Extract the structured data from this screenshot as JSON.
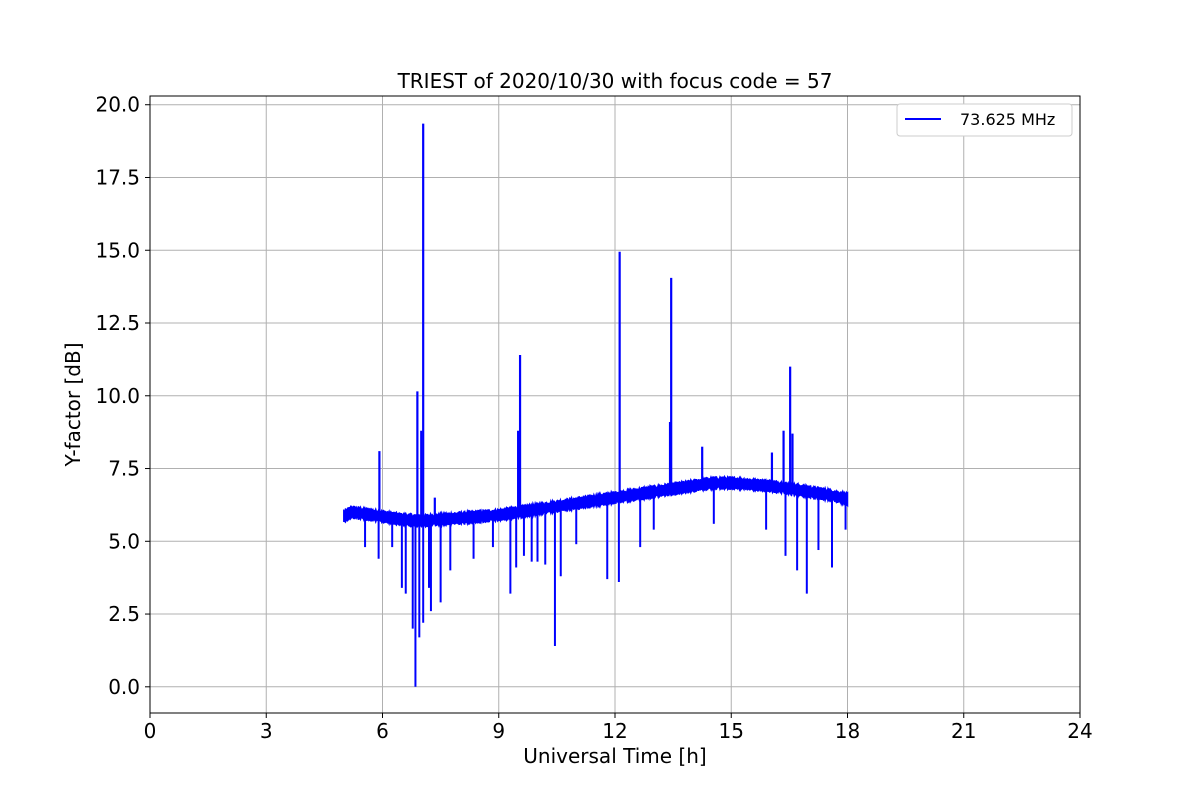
{
  "chart_data": {
    "type": "line",
    "title": "TRIEST of 2020/10/30 with focus code = 57",
    "xlabel": "Universal Time [h]",
    "ylabel": "Y-factor [dB]",
    "xlim": [
      0,
      24
    ],
    "ylim": [
      -0.9,
      20.3
    ],
    "xticks": [
      0,
      3,
      6,
      9,
      12,
      15,
      18,
      21,
      24
    ],
    "yticks": [
      0.0,
      2.5,
      5.0,
      7.5,
      10.0,
      12.5,
      15.0,
      17.5,
      20.0
    ],
    "xtick_labels": [
      "0",
      "3",
      "6",
      "9",
      "12",
      "15",
      "18",
      "21",
      "24"
    ],
    "ytick_labels": [
      "0.0",
      "2.5",
      "5.0",
      "7.5",
      "10.0",
      "12.5",
      "15.0",
      "17.5",
      "20.0"
    ],
    "grid": true,
    "legend_position": "top-right",
    "series": [
      {
        "name": "73.625 MHz",
        "color": "#0000ff",
        "baseline": {
          "x": [
            5.0,
            5.2,
            5.5,
            6.0,
            6.5,
            7.0,
            7.5,
            8.0,
            8.5,
            9.0,
            9.5,
            10.0,
            10.5,
            11.0,
            11.5,
            12.0,
            12.5,
            13.0,
            13.5,
            14.0,
            14.5,
            15.0,
            15.5,
            16.0,
            16.5,
            17.0,
            17.5,
            18.0
          ],
          "y": [
            5.85,
            6.0,
            5.95,
            5.85,
            5.75,
            5.7,
            5.75,
            5.8,
            5.85,
            5.9,
            6.0,
            6.1,
            6.2,
            6.3,
            6.4,
            6.5,
            6.6,
            6.7,
            6.8,
            6.9,
            7.0,
            7.0,
            6.95,
            6.9,
            6.8,
            6.7,
            6.6,
            6.45
          ]
        },
        "spikes_up": [
          {
            "x": 5.92,
            "y": 8.1
          },
          {
            "x": 6.9,
            "y": 10.15
          },
          {
            "x": 7.0,
            "y": 8.8
          },
          {
            "x": 7.05,
            "y": 19.35
          },
          {
            "x": 7.35,
            "y": 6.5
          },
          {
            "x": 9.5,
            "y": 8.8
          },
          {
            "x": 9.55,
            "y": 11.4
          },
          {
            "x": 12.12,
            "y": 14.95
          },
          {
            "x": 13.42,
            "y": 9.1
          },
          {
            "x": 13.45,
            "y": 14.05
          },
          {
            "x": 14.25,
            "y": 8.25
          },
          {
            "x": 16.05,
            "y": 8.05
          },
          {
            "x": 16.35,
            "y": 8.8
          },
          {
            "x": 16.52,
            "y": 11.0
          },
          {
            "x": 16.58,
            "y": 8.7
          }
        ],
        "spikes_down": [
          {
            "x": 5.55,
            "y": 4.8
          },
          {
            "x": 5.9,
            "y": 4.4
          },
          {
            "x": 6.25,
            "y": 4.8
          },
          {
            "x": 6.5,
            "y": 3.4
          },
          {
            "x": 6.6,
            "y": 3.2
          },
          {
            "x": 6.78,
            "y": 2.0
          },
          {
            "x": 6.85,
            "y": 0.0
          },
          {
            "x": 6.95,
            "y": 1.7
          },
          {
            "x": 7.05,
            "y": 2.2
          },
          {
            "x": 7.2,
            "y": 3.4
          },
          {
            "x": 7.25,
            "y": 2.6
          },
          {
            "x": 7.5,
            "y": 2.9
          },
          {
            "x": 7.75,
            "y": 4.0
          },
          {
            "x": 8.35,
            "y": 4.4
          },
          {
            "x": 8.85,
            "y": 4.8
          },
          {
            "x": 9.3,
            "y": 3.2
          },
          {
            "x": 9.45,
            "y": 4.1
          },
          {
            "x": 9.65,
            "y": 4.5
          },
          {
            "x": 9.85,
            "y": 4.3
          },
          {
            "x": 10.0,
            "y": 4.3
          },
          {
            "x": 10.2,
            "y": 4.2
          },
          {
            "x": 10.45,
            "y": 1.4
          },
          {
            "x": 10.6,
            "y": 3.8
          },
          {
            "x": 11.0,
            "y": 4.9
          },
          {
            "x": 11.8,
            "y": 3.7
          },
          {
            "x": 12.1,
            "y": 3.6
          },
          {
            "x": 12.65,
            "y": 4.8
          },
          {
            "x": 13.0,
            "y": 5.4
          },
          {
            "x": 14.55,
            "y": 5.6
          },
          {
            "x": 15.9,
            "y": 5.4
          },
          {
            "x": 16.4,
            "y": 4.5
          },
          {
            "x": 16.7,
            "y": 4.0
          },
          {
            "x": 16.95,
            "y": 3.2
          },
          {
            "x": 17.25,
            "y": 4.7
          },
          {
            "x": 17.6,
            "y": 4.1
          },
          {
            "x": 17.95,
            "y": 5.4
          }
        ]
      }
    ]
  }
}
